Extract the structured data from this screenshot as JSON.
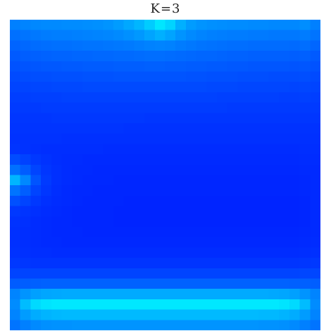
{
  "chart_data": {
    "type": "heatmap",
    "title": "K=3",
    "grid_size": 30,
    "colormap": [
      "#0020ff",
      "#00e8ff"
    ],
    "values": [
      [
        0.48,
        0.5,
        0.52,
        0.53,
        0.53,
        0.54,
        0.54,
        0.55,
        0.56,
        0.58,
        0.62,
        0.68,
        0.75,
        0.86,
        0.99,
        0.9,
        0.72,
        0.62,
        0.58,
        0.56,
        0.55,
        0.54,
        0.54,
        0.53,
        0.53,
        0.52,
        0.52,
        0.52,
        0.55,
        0.48
      ],
      [
        0.4,
        0.42,
        0.44,
        0.46,
        0.47,
        0.47,
        0.48,
        0.49,
        0.5,
        0.51,
        0.53,
        0.56,
        0.6,
        0.66,
        0.72,
        0.66,
        0.58,
        0.53,
        0.5,
        0.48,
        0.47,
        0.46,
        0.46,
        0.45,
        0.45,
        0.44,
        0.44,
        0.44,
        0.46,
        0.42
      ],
      [
        0.34,
        0.36,
        0.38,
        0.39,
        0.4,
        0.4,
        0.41,
        0.42,
        0.42,
        0.43,
        0.44,
        0.45,
        0.47,
        0.49,
        0.5,
        0.49,
        0.46,
        0.44,
        0.42,
        0.41,
        0.4,
        0.39,
        0.39,
        0.38,
        0.38,
        0.38,
        0.38,
        0.37,
        0.39,
        0.35
      ],
      [
        0.29,
        0.31,
        0.32,
        0.33,
        0.34,
        0.34,
        0.35,
        0.35,
        0.36,
        0.36,
        0.37,
        0.37,
        0.38,
        0.39,
        0.39,
        0.38,
        0.37,
        0.36,
        0.35,
        0.35,
        0.34,
        0.33,
        0.33,
        0.32,
        0.32,
        0.32,
        0.32,
        0.31,
        0.32,
        0.29
      ],
      [
        0.25,
        0.26,
        0.27,
        0.28,
        0.28,
        0.29,
        0.29,
        0.3,
        0.3,
        0.3,
        0.31,
        0.31,
        0.31,
        0.32,
        0.32,
        0.31,
        0.31,
        0.3,
        0.3,
        0.29,
        0.29,
        0.28,
        0.28,
        0.27,
        0.27,
        0.27,
        0.27,
        0.26,
        0.27,
        0.25
      ],
      [
        0.21,
        0.22,
        0.23,
        0.23,
        0.24,
        0.24,
        0.24,
        0.25,
        0.25,
        0.25,
        0.26,
        0.26,
        0.26,
        0.26,
        0.26,
        0.26,
        0.26,
        0.25,
        0.25,
        0.24,
        0.24,
        0.24,
        0.23,
        0.23,
        0.23,
        0.22,
        0.22,
        0.22,
        0.23,
        0.21
      ],
      [
        0.18,
        0.18,
        0.19,
        0.19,
        0.2,
        0.2,
        0.2,
        0.21,
        0.21,
        0.21,
        0.21,
        0.21,
        0.21,
        0.21,
        0.21,
        0.21,
        0.21,
        0.21,
        0.21,
        0.2,
        0.2,
        0.2,
        0.19,
        0.19,
        0.19,
        0.19,
        0.19,
        0.18,
        0.19,
        0.18
      ],
      [
        0.15,
        0.15,
        0.16,
        0.16,
        0.16,
        0.17,
        0.17,
        0.17,
        0.17,
        0.17,
        0.17,
        0.17,
        0.17,
        0.17,
        0.17,
        0.17,
        0.17,
        0.17,
        0.17,
        0.17,
        0.16,
        0.16,
        0.16,
        0.16,
        0.16,
        0.16,
        0.15,
        0.15,
        0.16,
        0.15
      ],
      [
        0.13,
        0.13,
        0.13,
        0.14,
        0.14,
        0.14,
        0.14,
        0.14,
        0.14,
        0.14,
        0.14,
        0.14,
        0.14,
        0.14,
        0.14,
        0.14,
        0.14,
        0.14,
        0.14,
        0.14,
        0.14,
        0.13,
        0.13,
        0.13,
        0.13,
        0.13,
        0.13,
        0.13,
        0.13,
        0.13
      ],
      [
        0.11,
        0.11,
        0.11,
        0.11,
        0.12,
        0.12,
        0.12,
        0.12,
        0.12,
        0.12,
        0.12,
        0.12,
        0.12,
        0.11,
        0.11,
        0.11,
        0.11,
        0.11,
        0.11,
        0.11,
        0.11,
        0.11,
        0.11,
        0.11,
        0.11,
        0.11,
        0.11,
        0.11,
        0.11,
        0.11
      ],
      [
        0.1,
        0.1,
        0.1,
        0.1,
        0.1,
        0.1,
        0.1,
        0.1,
        0.1,
        0.1,
        0.1,
        0.09,
        0.09,
        0.09,
        0.09,
        0.09,
        0.09,
        0.09,
        0.09,
        0.09,
        0.09,
        0.09,
        0.09,
        0.09,
        0.09,
        0.09,
        0.09,
        0.09,
        0.09,
        0.09
      ],
      [
        0.09,
        0.09,
        0.09,
        0.09,
        0.09,
        0.08,
        0.08,
        0.08,
        0.08,
        0.08,
        0.08,
        0.08,
        0.08,
        0.08,
        0.08,
        0.08,
        0.08,
        0.08,
        0.08,
        0.08,
        0.08,
        0.08,
        0.08,
        0.08,
        0.08,
        0.08,
        0.08,
        0.08,
        0.08,
        0.08
      ],
      [
        0.1,
        0.09,
        0.08,
        0.07,
        0.07,
        0.07,
        0.07,
        0.07,
        0.07,
        0.06,
        0.06,
        0.06,
        0.06,
        0.06,
        0.06,
        0.06,
        0.06,
        0.06,
        0.06,
        0.06,
        0.06,
        0.06,
        0.06,
        0.06,
        0.06,
        0.06,
        0.06,
        0.06,
        0.07,
        0.07
      ],
      [
        0.22,
        0.17,
        0.12,
        0.09,
        0.07,
        0.06,
        0.06,
        0.05,
        0.05,
        0.05,
        0.05,
        0.05,
        0.05,
        0.05,
        0.05,
        0.05,
        0.05,
        0.05,
        0.05,
        0.05,
        0.05,
        0.05,
        0.05,
        0.05,
        0.05,
        0.05,
        0.05,
        0.05,
        0.06,
        0.06
      ],
      [
        0.4,
        0.3,
        0.18,
        0.11,
        0.08,
        0.06,
        0.05,
        0.05,
        0.04,
        0.04,
        0.04,
        0.04,
        0.04,
        0.04,
        0.04,
        0.04,
        0.04,
        0.04,
        0.04,
        0.04,
        0.04,
        0.04,
        0.04,
        0.04,
        0.04,
        0.04,
        0.04,
        0.04,
        0.05,
        0.05
      ],
      [
        0.75,
        0.52,
        0.26,
        0.13,
        0.08,
        0.06,
        0.05,
        0.04,
        0.04,
        0.04,
        0.03,
        0.03,
        0.03,
        0.03,
        0.03,
        0.03,
        0.03,
        0.03,
        0.03,
        0.03,
        0.03,
        0.03,
        0.03,
        0.03,
        0.03,
        0.03,
        0.03,
        0.03,
        0.04,
        0.05
      ],
      [
        0.42,
        0.31,
        0.18,
        0.11,
        0.07,
        0.05,
        0.04,
        0.04,
        0.03,
        0.03,
        0.03,
        0.03,
        0.03,
        0.03,
        0.03,
        0.03,
        0.03,
        0.03,
        0.03,
        0.03,
        0.03,
        0.03,
        0.03,
        0.03,
        0.03,
        0.03,
        0.03,
        0.03,
        0.04,
        0.05
      ],
      [
        0.24,
        0.18,
        0.12,
        0.08,
        0.06,
        0.05,
        0.04,
        0.03,
        0.03,
        0.03,
        0.03,
        0.02,
        0.02,
        0.02,
        0.02,
        0.02,
        0.02,
        0.02,
        0.02,
        0.02,
        0.02,
        0.02,
        0.02,
        0.02,
        0.02,
        0.02,
        0.02,
        0.02,
        0.03,
        0.05
      ],
      [
        0.12,
        0.1,
        0.08,
        0.06,
        0.05,
        0.04,
        0.03,
        0.03,
        0.03,
        0.03,
        0.02,
        0.02,
        0.02,
        0.02,
        0.02,
        0.02,
        0.02,
        0.02,
        0.02,
        0.02,
        0.02,
        0.02,
        0.02,
        0.02,
        0.02,
        0.02,
        0.02,
        0.02,
        0.03,
        0.05
      ],
      [
        0.09,
        0.08,
        0.06,
        0.05,
        0.04,
        0.04,
        0.03,
        0.03,
        0.03,
        0.03,
        0.02,
        0.02,
        0.02,
        0.02,
        0.02,
        0.02,
        0.02,
        0.02,
        0.02,
        0.02,
        0.02,
        0.02,
        0.02,
        0.02,
        0.02,
        0.02,
        0.02,
        0.02,
        0.03,
        0.05
      ],
      [
        0.08,
        0.07,
        0.06,
        0.05,
        0.04,
        0.04,
        0.04,
        0.03,
        0.03,
        0.03,
        0.03,
        0.03,
        0.03,
        0.03,
        0.03,
        0.03,
        0.03,
        0.03,
        0.03,
        0.03,
        0.03,
        0.03,
        0.03,
        0.03,
        0.03,
        0.03,
        0.03,
        0.03,
        0.04,
        0.05
      ],
      [
        0.08,
        0.07,
        0.06,
        0.05,
        0.05,
        0.04,
        0.04,
        0.04,
        0.04,
        0.04,
        0.04,
        0.04,
        0.04,
        0.04,
        0.04,
        0.04,
        0.04,
        0.04,
        0.04,
        0.04,
        0.04,
        0.04,
        0.04,
        0.04,
        0.04,
        0.04,
        0.04,
        0.04,
        0.05,
        0.06
      ],
      [
        0.09,
        0.08,
        0.07,
        0.07,
        0.06,
        0.06,
        0.06,
        0.06,
        0.06,
        0.06,
        0.06,
        0.06,
        0.06,
        0.06,
        0.06,
        0.06,
        0.06,
        0.06,
        0.06,
        0.06,
        0.06,
        0.06,
        0.06,
        0.06,
        0.06,
        0.06,
        0.06,
        0.06,
        0.07,
        0.08
      ],
      [
        0.12,
        0.11,
        0.1,
        0.1,
        0.1,
        0.1,
        0.1,
        0.1,
        0.1,
        0.1,
        0.1,
        0.1,
        0.1,
        0.1,
        0.1,
        0.1,
        0.1,
        0.1,
        0.1,
        0.1,
        0.1,
        0.1,
        0.1,
        0.1,
        0.1,
        0.1,
        0.1,
        0.1,
        0.11,
        0.12
      ],
      [
        0.18,
        0.18,
        0.18,
        0.18,
        0.18,
        0.18,
        0.18,
        0.18,
        0.18,
        0.18,
        0.18,
        0.18,
        0.18,
        0.18,
        0.18,
        0.18,
        0.18,
        0.18,
        0.18,
        0.18,
        0.18,
        0.18,
        0.18,
        0.18,
        0.18,
        0.18,
        0.18,
        0.18,
        0.19,
        0.19
      ],
      [
        0.3,
        0.31,
        0.32,
        0.33,
        0.33,
        0.33,
        0.33,
        0.33,
        0.33,
        0.33,
        0.33,
        0.33,
        0.33,
        0.33,
        0.33,
        0.33,
        0.33,
        0.33,
        0.33,
        0.33,
        0.33,
        0.33,
        0.33,
        0.33,
        0.33,
        0.33,
        0.33,
        0.32,
        0.32,
        0.31
      ],
      [
        0.5,
        0.58,
        0.64,
        0.67,
        0.68,
        0.69,
        0.69,
        0.69,
        0.69,
        0.69,
        0.69,
        0.69,
        0.69,
        0.69,
        0.69,
        0.69,
        0.69,
        0.69,
        0.69,
        0.69,
        0.69,
        0.69,
        0.69,
        0.69,
        0.69,
        0.68,
        0.67,
        0.64,
        0.58,
        0.5
      ],
      [
        0.54,
        0.78,
        0.93,
        0.98,
        1.0,
        1.0,
        1.0,
        1.0,
        1.0,
        1.0,
        1.0,
        1.0,
        1.0,
        1.0,
        1.0,
        1.0,
        1.0,
        1.0,
        1.0,
        1.0,
        1.0,
        1.0,
        1.0,
        1.0,
        1.0,
        1.0,
        0.98,
        0.93,
        0.78,
        0.54
      ],
      [
        0.5,
        0.62,
        0.7,
        0.74,
        0.76,
        0.77,
        0.77,
        0.77,
        0.77,
        0.77,
        0.77,
        0.77,
        0.77,
        0.77,
        0.77,
        0.77,
        0.77,
        0.77,
        0.77,
        0.77,
        0.77,
        0.77,
        0.77,
        0.77,
        0.76,
        0.76,
        0.74,
        0.7,
        0.62,
        0.5
      ],
      [
        0.42,
        0.48,
        0.53,
        0.56,
        0.57,
        0.57,
        0.58,
        0.58,
        0.58,
        0.58,
        0.58,
        0.58,
        0.58,
        0.58,
        0.58,
        0.58,
        0.58,
        0.58,
        0.58,
        0.58,
        0.58,
        0.58,
        0.58,
        0.58,
        0.57,
        0.57,
        0.56,
        0.53,
        0.48,
        0.42
      ]
    ]
  }
}
